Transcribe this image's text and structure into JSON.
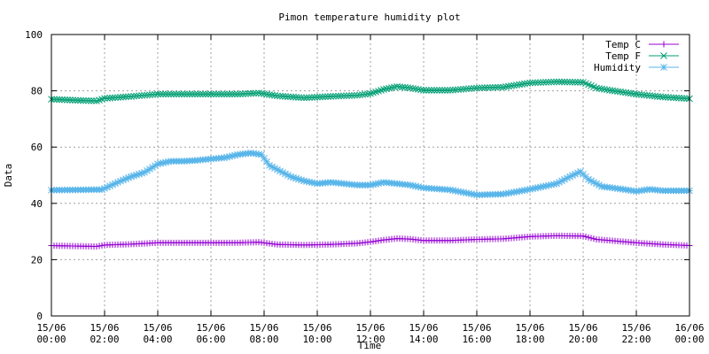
{
  "chart_data": {
    "type": "line",
    "title": "Pimon temperature   humidity plot",
    "xlabel": "Time",
    "ylabel": "Data",
    "ylim": [
      0,
      100
    ],
    "xlim": [
      0,
      24
    ],
    "grid": true,
    "legend_position": "top-right",
    "y_ticks": [
      "0",
      "20",
      "40",
      "60",
      "80",
      "100"
    ],
    "x_ticks": [
      [
        "15/06",
        "00:00"
      ],
      [
        "15/06",
        "02:00"
      ],
      [
        "15/06",
        "04:00"
      ],
      [
        "15/06",
        "06:00"
      ],
      [
        "15/06",
        "08:00"
      ],
      [
        "15/06",
        "10:00"
      ],
      [
        "15/06",
        "12:00"
      ],
      [
        "15/06",
        "14:00"
      ],
      [
        "15/06",
        "16:00"
      ],
      [
        "15/06",
        "18:00"
      ],
      [
        "15/06",
        "20:00"
      ],
      [
        "15/06",
        "22:00"
      ],
      [
        "16/06",
        "00:00"
      ]
    ],
    "series": [
      {
        "name": "Temp C",
        "color": "#9400d3",
        "marker": "plus",
        "points": [
          [
            0,
            25
          ],
          [
            1,
            24.8
          ],
          [
            1.7,
            24.7
          ],
          [
            2,
            25.2
          ],
          [
            3,
            25.5
          ],
          [
            4,
            26
          ],
          [
            5,
            26
          ],
          [
            6,
            26
          ],
          [
            7,
            26
          ],
          [
            7.8,
            26.2
          ],
          [
            8.5,
            25.4
          ],
          [
            9.5,
            25.2
          ],
          [
            10.5,
            25.4
          ],
          [
            11.5,
            25.8
          ],
          [
            12,
            26.3
          ],
          [
            12.5,
            27
          ],
          [
            13,
            27.5
          ],
          [
            13.5,
            27.3
          ],
          [
            14,
            26.8
          ],
          [
            15,
            26.8
          ],
          [
            16,
            27.2
          ],
          [
            17,
            27.4
          ],
          [
            18,
            28.2
          ],
          [
            19,
            28.5
          ],
          [
            20,
            28.4
          ],
          [
            20.5,
            27.2
          ],
          [
            21,
            26.8
          ],
          [
            22,
            26
          ],
          [
            23,
            25.4
          ],
          [
            24,
            25
          ]
        ]
      },
      {
        "name": "Temp F",
        "color": "#009e73",
        "marker": "cross",
        "points": [
          [
            0,
            77
          ],
          [
            1,
            76.6
          ],
          [
            1.7,
            76.4
          ],
          [
            2,
            77.3
          ],
          [
            3,
            78
          ],
          [
            4,
            78.8
          ],
          [
            5,
            78.8
          ],
          [
            6,
            78.8
          ],
          [
            7,
            78.8
          ],
          [
            7.8,
            79.2
          ],
          [
            8.5,
            78.2
          ],
          [
            9.5,
            77.5
          ],
          [
            10.5,
            78
          ],
          [
            11.5,
            78.4
          ],
          [
            12,
            79
          ],
          [
            12.5,
            80.5
          ],
          [
            13,
            81.5
          ],
          [
            13.5,
            81
          ],
          [
            14,
            80.2
          ],
          [
            15,
            80.2
          ],
          [
            16,
            81
          ],
          [
            17,
            81.3
          ],
          [
            18,
            82.8
          ],
          [
            19,
            83.2
          ],
          [
            20,
            83
          ],
          [
            20.5,
            81
          ],
          [
            21,
            80.2
          ],
          [
            22,
            78.8
          ],
          [
            23,
            77.8
          ],
          [
            24,
            77.2
          ]
        ]
      },
      {
        "name": "Humidity",
        "color": "#56b4e9",
        "marker": "star",
        "points": [
          [
            0,
            44.7
          ],
          [
            1,
            44.8
          ],
          [
            1.9,
            44.9
          ],
          [
            2.5,
            47.5
          ],
          [
            3,
            49.5
          ],
          [
            3.5,
            51
          ],
          [
            4,
            54
          ],
          [
            4.5,
            55
          ],
          [
            5,
            55
          ],
          [
            5.5,
            55.3
          ],
          [
            6,
            55.8
          ],
          [
            6.5,
            56.2
          ],
          [
            7,
            57.3
          ],
          [
            7.5,
            57.9
          ],
          [
            7.9,
            57.3
          ],
          [
            8.2,
            53.5
          ],
          [
            9,
            49.5
          ],
          [
            9.5,
            48
          ],
          [
            10,
            47
          ],
          [
            10.5,
            47.5
          ],
          [
            11,
            47
          ],
          [
            11.5,
            46.5
          ],
          [
            12,
            46.5
          ],
          [
            12.5,
            47.5
          ],
          [
            13,
            47
          ],
          [
            13.5,
            46.5
          ],
          [
            14,
            45.5
          ],
          [
            15,
            44.8
          ],
          [
            16,
            43
          ],
          [
            17,
            43.3
          ],
          [
            18,
            45
          ],
          [
            19,
            47
          ],
          [
            19.5,
            49.5
          ],
          [
            19.9,
            51.3
          ],
          [
            20.2,
            48.5
          ],
          [
            20.7,
            46
          ],
          [
            21.5,
            45
          ],
          [
            22,
            44.3
          ],
          [
            22.5,
            45
          ],
          [
            23,
            44.5
          ],
          [
            24,
            44.5
          ]
        ]
      }
    ]
  }
}
